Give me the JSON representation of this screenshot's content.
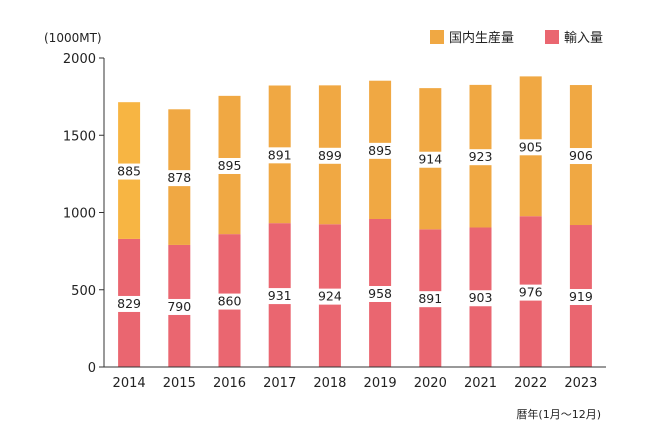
{
  "chart_data": {
    "type": "bar",
    "stacked": true,
    "unit_label": "(1000MT)",
    "xlabel": "暦年(1月～12月)",
    "ylim": [
      0,
      2000
    ],
    "yticks": [
      0,
      500,
      1000,
      1500,
      2000
    ],
    "categories": [
      "2014",
      "2015",
      "2016",
      "2017",
      "2018",
      "2019",
      "2020",
      "2021",
      "2022",
      "2023"
    ],
    "series": [
      {
        "name": "輸入量",
        "color": "#ea6670",
        "values": [
          829,
          790,
          860,
          931,
          924,
          958,
          891,
          903,
          976,
          919
        ]
      },
      {
        "name": "国内生産量",
        "color": "#f0a843",
        "first_bar_color": "#f7b543",
        "values": [
          885,
          878,
          895,
          891,
          899,
          895,
          914,
          923,
          905,
          906
        ]
      }
    ],
    "legend_order": [
      1,
      0
    ],
    "legend_position": "top-right",
    "grid": false
  }
}
